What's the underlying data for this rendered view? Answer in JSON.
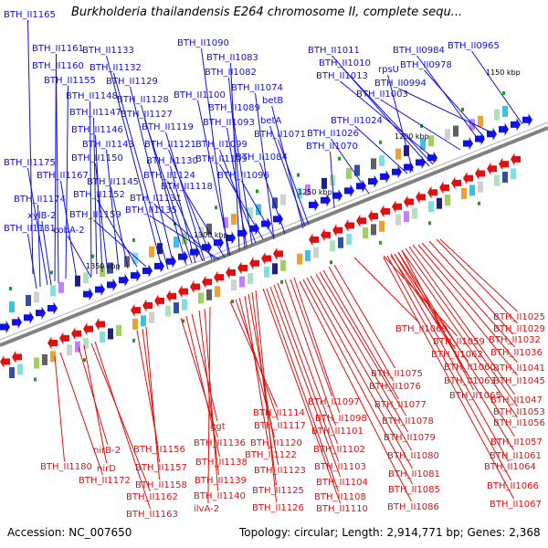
{
  "title": "Burkholderia thailandensis E264 chromosome II, complete sequ...",
  "footer": {
    "accession": "Accession: NC_007650",
    "summary": "Topology: circular; Length: 2,914,771 bp; Genes: 2,368"
  },
  "colors": {
    "forward": "#1010e0",
    "reverse": "#e01010",
    "backbone": "#808080"
  },
  "kbp_markers": [
    "1150 kbp",
    "1200 kbp",
    "1250 kbp",
    "1300 kbp",
    "1350 kbp"
  ],
  "forward_labels": [
    "BTH_II1165",
    "BTH_II1161",
    "BTH_II1133",
    "BTH_II1160",
    "BTH_II1132",
    "BTH_II1155",
    "BTH_II1129",
    "BTH_II1148",
    "BTH_II1128",
    "BTH_II1147",
    "BTH_II1127",
    "BTH_II1146",
    "BTH_II1119",
    "BTH_II1143",
    "BTH_II1121",
    "BTH_II1150",
    "BTH_II1130",
    "BTH_II1175",
    "BTH_II1167",
    "BTH_II1124",
    "BTH_II1145",
    "BTH_II1118",
    "BTH_II1152",
    "BTH_II1131",
    "BTH_II1174",
    "BTH_II1135",
    "xylB-2",
    "BTH_II1159",
    "BTH_II1181",
    "cobA-2",
    "BTH_II1090",
    "BTH_II1083",
    "BTH_II1082",
    "BTH_II1074",
    "BTH_II1100",
    "betB",
    "BTH_II1089",
    "betA",
    "BTH_II1093",
    "BTH_II1071",
    "BTH_II1099",
    "BTH_II1109",
    "BTH_II1084",
    "BTH_II1096",
    "BTH_II1011",
    "BTH_II0984",
    "BTH_II0965",
    "BTH_II1010",
    "BTH_II0978",
    "BTH_II1013",
    "rpsU",
    "BTH_II0994",
    "BTH_II1003",
    "BTH_II1024",
    "BTH_II1026",
    "BTH_II1070"
  ],
  "reverse_labels": [
    "BTH_II1025",
    "BTH_II1069",
    "BTH_II1029",
    "BTH_II1059",
    "BTH_II1032",
    "BTH_II1062",
    "BTH_II1036",
    "BTH_II1060",
    "BTH_II1041",
    "BTH_II1075",
    "BTH_II1063",
    "BTH_II1045",
    "BTH_II1076",
    "BTH_II1065",
    "BTH_II1047",
    "BTH_II1097",
    "BTH_II1077",
    "BTH_II1053",
    "BTH_II1114",
    "BTH_II1098",
    "BTH_II1056",
    "BTH_II1117",
    "BTH_II1078",
    "ggt",
    "BTH_II1101",
    "BTH_II1057",
    "BTH_II1079",
    "BTH_II1136",
    "BTH_II1120",
    "BTH_II1061",
    "nirB-2",
    "BTH_II1156",
    "BTH_II1122",
    "BTH_II1102",
    "BTH_II1080",
    "BTH_II1180",
    "nirD",
    "BTH_II1138",
    "BTH_II1064",
    "BTH_II1157",
    "BTH_II1123",
    "BTH_II1103",
    "BTH_II1172",
    "BTH_II1081",
    "BTH_II1066",
    "BTH_II1158",
    "BTH_II1139",
    "BTH_II1104",
    "BTH_II1125",
    "BTH_II1085",
    "BTH_II1162",
    "BTH_II1140",
    "BTH_II1108",
    "BTH_II1067",
    "ilvA-2",
    "BTH_II1126",
    "BTH_II1110",
    "BTH_II1086",
    "BTH_II1163"
  ]
}
